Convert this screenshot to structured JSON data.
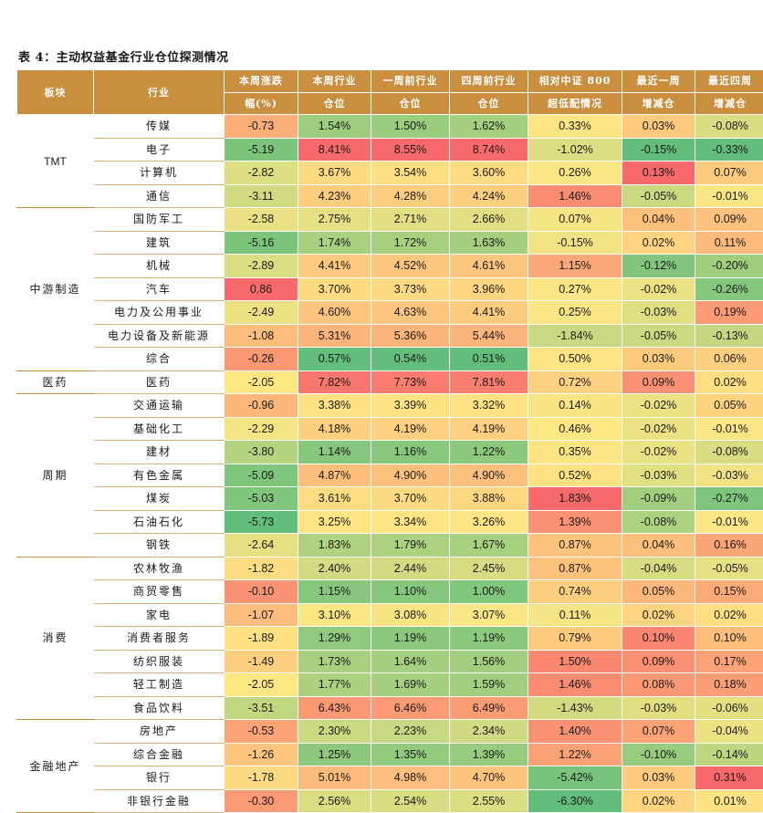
{
  "title": "表 4：主动权益基金行业仓位探测情况",
  "headers": {
    "sector": "板块",
    "industry": "行业",
    "chg_l1": "本周涨跌",
    "chg_l2": "幅(%)",
    "pos_l1": "本周行业",
    "pos_l2": "仓位",
    "prev_l1": "一周前行业",
    "prev_l2": "仓位",
    "four_l1": "四周前行业",
    "four_l2": "仓位",
    "rel_l1": "相对中证 800",
    "rel_l2": "超低配情况",
    "w1_l1": "最近一周",
    "w1_l2": "增减仓",
    "w4_l1": "最近四周",
    "w4_l2": "增减仓"
  },
  "colors": {
    "header": "#c98e3e",
    "high": "#f8696b",
    "mid": "#ffe784",
    "low": "#63be7b"
  },
  "groups": [
    {
      "sector": "TMT",
      "rows": [
        {
          "industry": "传媒",
          "chg": "-0.73",
          "pos": "1.54%",
          "prev": "1.50%",
          "four": "1.62%",
          "rel": "0.33%",
          "w1": "0.03%",
          "w4": "-0.08%"
        },
        {
          "industry": "电子",
          "chg": "-5.19",
          "pos": "8.41%",
          "prev": "8.55%",
          "four": "8.74%",
          "rel": "-1.02%",
          "w1": "-0.15%",
          "w4": "-0.33%"
        },
        {
          "industry": "计算机",
          "chg": "-2.82",
          "pos": "3.67%",
          "prev": "3.54%",
          "four": "3.60%",
          "rel": "0.26%",
          "w1": "0.13%",
          "w4": "0.07%"
        },
        {
          "industry": "通信",
          "chg": "-3.11",
          "pos": "4.23%",
          "prev": "4.28%",
          "four": "4.24%",
          "rel": "1.46%",
          "w1": "-0.05%",
          "w4": "-0.01%"
        }
      ]
    },
    {
      "sector": "中游制造",
      "rows": [
        {
          "industry": "国防军工",
          "chg": "-2.58",
          "pos": "2.75%",
          "prev": "2.71%",
          "four": "2.66%",
          "rel": "0.07%",
          "w1": "0.04%",
          "w4": "0.09%"
        },
        {
          "industry": "建筑",
          "chg": "-5.16",
          "pos": "1.74%",
          "prev": "1.72%",
          "four": "1.63%",
          "rel": "-0.15%",
          "w1": "0.02%",
          "w4": "0.11%"
        },
        {
          "industry": "机械",
          "chg": "-2.89",
          "pos": "4.41%",
          "prev": "4.52%",
          "four": "4.61%",
          "rel": "1.15%",
          "w1": "-0.12%",
          "w4": "-0.20%"
        },
        {
          "industry": "汽车",
          "chg": "0.86",
          "pos": "3.70%",
          "prev": "3.73%",
          "four": "3.96%",
          "rel": "0.27%",
          "w1": "-0.02%",
          "w4": "-0.26%"
        },
        {
          "industry": "电力及公用事业",
          "chg": "-2.49",
          "pos": "4.60%",
          "prev": "4.63%",
          "four": "4.41%",
          "rel": "0.25%",
          "w1": "-0.03%",
          "w4": "0.19%"
        },
        {
          "industry": "电力设备及新能源",
          "chg": "-1.08",
          "pos": "5.31%",
          "prev": "5.36%",
          "four": "5.44%",
          "rel": "-1.84%",
          "w1": "-0.05%",
          "w4": "-0.13%"
        },
        {
          "industry": "综合",
          "chg": "-0.26",
          "pos": "0.57%",
          "prev": "0.54%",
          "four": "0.51%",
          "rel": "0.50%",
          "w1": "0.03%",
          "w4": "0.06%"
        }
      ]
    },
    {
      "sector": "医药",
      "rows": [
        {
          "industry": "医药",
          "chg": "-2.05",
          "pos": "7.82%",
          "prev": "7.73%",
          "four": "7.81%",
          "rel": "0.72%",
          "w1": "0.09%",
          "w4": "0.02%"
        }
      ]
    },
    {
      "sector": "周期",
      "rows": [
        {
          "industry": "交通运输",
          "chg": "-0.96",
          "pos": "3.38%",
          "prev": "3.39%",
          "four": "3.32%",
          "rel": "0.14%",
          "w1": "-0.02%",
          "w4": "0.05%"
        },
        {
          "industry": "基础化工",
          "chg": "-2.29",
          "pos": "4.18%",
          "prev": "4.19%",
          "four": "4.19%",
          "rel": "0.46%",
          "w1": "-0.02%",
          "w4": "-0.01%"
        },
        {
          "industry": "建材",
          "chg": "-3.80",
          "pos": "1.14%",
          "prev": "1.16%",
          "four": "1.22%",
          "rel": "0.35%",
          "w1": "-0.02%",
          "w4": "-0.08%"
        },
        {
          "industry": "有色金属",
          "chg": "-5.09",
          "pos": "4.87%",
          "prev": "4.90%",
          "four": "4.90%",
          "rel": "0.52%",
          "w1": "-0.03%",
          "w4": "-0.03%"
        },
        {
          "industry": "煤炭",
          "chg": "-5.03",
          "pos": "3.61%",
          "prev": "3.70%",
          "four": "3.88%",
          "rel": "1.83%",
          "w1": "-0.09%",
          "w4": "-0.27%"
        },
        {
          "industry": "石油石化",
          "chg": "-5.73",
          "pos": "3.25%",
          "prev": "3.34%",
          "four": "3.26%",
          "rel": "1.39%",
          "w1": "-0.08%",
          "w4": "-0.01%"
        },
        {
          "industry": "钢铁",
          "chg": "-2.64",
          "pos": "1.83%",
          "prev": "1.79%",
          "four": "1.67%",
          "rel": "0.87%",
          "w1": "0.04%",
          "w4": "0.16%"
        }
      ]
    },
    {
      "sector": "消费",
      "rows": [
        {
          "industry": "农林牧渔",
          "chg": "-1.82",
          "pos": "2.40%",
          "prev": "2.44%",
          "four": "2.45%",
          "rel": "0.87%",
          "w1": "-0.04%",
          "w4": "-0.05%"
        },
        {
          "industry": "商贸零售",
          "chg": "-0.10",
          "pos": "1.15%",
          "prev": "1.10%",
          "four": "1.00%",
          "rel": "0.74%",
          "w1": "0.05%",
          "w4": "0.15%"
        },
        {
          "industry": "家电",
          "chg": "-1.07",
          "pos": "3.10%",
          "prev": "3.08%",
          "four": "3.07%",
          "rel": "0.11%",
          "w1": "0.02%",
          "w4": "0.02%"
        },
        {
          "industry": "消费者服务",
          "chg": "-1.89",
          "pos": "1.29%",
          "prev": "1.19%",
          "four": "1.19%",
          "rel": "0.79%",
          "w1": "0.10%",
          "w4": "0.10%"
        },
        {
          "industry": "纺织服装",
          "chg": "-1.49",
          "pos": "1.73%",
          "prev": "1.64%",
          "four": "1.56%",
          "rel": "1.50%",
          "w1": "0.09%",
          "w4": "0.17%"
        },
        {
          "industry": "轻工制造",
          "chg": "-2.05",
          "pos": "1.77%",
          "prev": "1.69%",
          "four": "1.59%",
          "rel": "1.46%",
          "w1": "0.08%",
          "w4": "0.18%"
        },
        {
          "industry": "食品饮料",
          "chg": "-3.51",
          "pos": "6.43%",
          "prev": "6.46%",
          "four": "6.49%",
          "rel": "-1.43%",
          "w1": "-0.03%",
          "w4": "-0.06%"
        }
      ]
    },
    {
      "sector": "金融地产",
      "rows": [
        {
          "industry": "房地产",
          "chg": "-0.53",
          "pos": "2.30%",
          "prev": "2.23%",
          "four": "2.34%",
          "rel": "1.40%",
          "w1": "0.07%",
          "w4": "-0.04%"
        },
        {
          "industry": "综合金融",
          "chg": "-1.26",
          "pos": "1.25%",
          "prev": "1.35%",
          "four": "1.39%",
          "rel": "1.22%",
          "w1": "-0.10%",
          "w4": "-0.14%"
        },
        {
          "industry": "银行",
          "chg": "-1.78",
          "pos": "5.01%",
          "prev": "4.98%",
          "four": "4.70%",
          "rel": "-5.42%",
          "w1": "0.03%",
          "w4": "0.31%"
        },
        {
          "industry": "非银行金融",
          "chg": "-0.30",
          "pos": "2.56%",
          "prev": "2.54%",
          "four": "2.55%",
          "rel": "-6.30%",
          "w1": "0.02%",
          "w4": "0.01%"
        }
      ]
    }
  ]
}
